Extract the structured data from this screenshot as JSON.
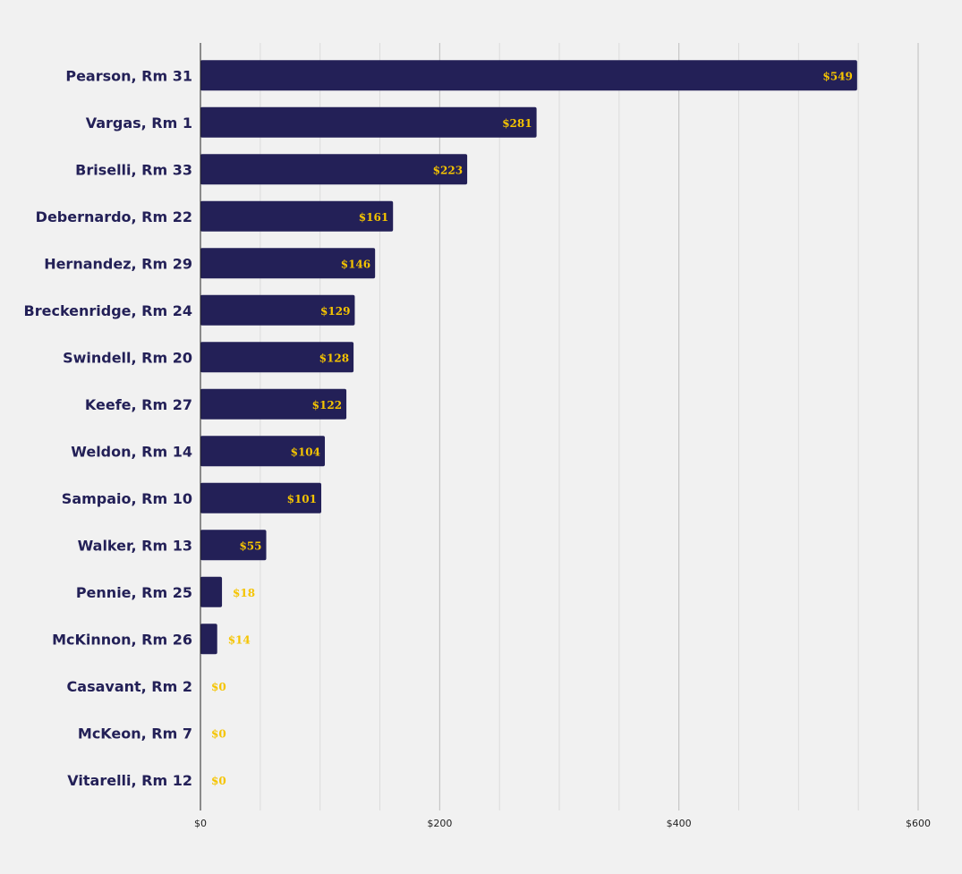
{
  "chart_data": {
    "type": "bar",
    "orientation": "horizontal",
    "categories": [
      "Pearson, Rm 31",
      "Vargas, Rm 1",
      "Briselli, Rm 33",
      "Debernardo, Rm 22",
      "Hernandez, Rm 29",
      "Breckenridge, Rm 24",
      "Swindell, Rm 20",
      "Keefe, Rm 27",
      "Weldon, Rm 14",
      "Sampaio, Rm 10",
      "Walker, Rm 13",
      "Pennie, Rm 25",
      "McKinnon, Rm 26",
      "Casavant, Rm 2",
      "McKeon, Rm 7",
      "Vitarelli, Rm 12"
    ],
    "values": [
      549,
      281,
      223,
      161,
      146,
      129,
      128,
      122,
      104,
      101,
      55,
      18,
      14,
      0,
      0,
      0
    ],
    "data_labels": [
      "$549",
      "$281",
      "$223",
      "$161",
      "$146",
      "$129",
      "$128",
      "$122",
      "$104",
      "$101",
      "$55",
      "$18",
      "$14",
      "$0",
      "$0",
      "$0"
    ],
    "xlim": [
      0,
      600
    ],
    "x_ticks": [
      0,
      200,
      400,
      600
    ],
    "x_tick_labels": [
      "$0",
      "$200",
      "$400",
      "$600"
    ],
    "grid": true,
    "minor_grid_step": 50,
    "title": "",
    "xlabel": "",
    "ylabel": "",
    "colors": {
      "bar": "#232057",
      "label": "#f5c400",
      "category": "#232057",
      "background": "#f1f1f1"
    }
  }
}
